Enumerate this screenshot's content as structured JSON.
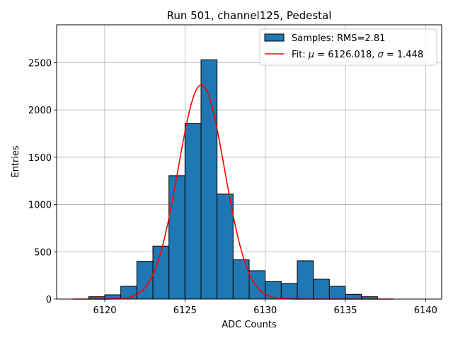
{
  "chart_data": {
    "type": "bar",
    "title": "Run 501, channel125, Pedestal",
    "xlabel": "ADC Counts",
    "ylabel": "Entries",
    "xlim": [
      6117,
      6141
    ],
    "ylim": [
      0,
      2900
    ],
    "grid": true,
    "legend_placement": "top-right",
    "xticks": [
      6120,
      6125,
      6130,
      6135,
      6140
    ],
    "yticks": [
      0,
      500,
      1000,
      1500,
      2000,
      2500
    ],
    "histogram": {
      "name": "Samples: RMS=2.81",
      "color": "#1f77b4",
      "edgecolor": "#000000",
      "bin_width": 1,
      "bin_starts": [
        6119,
        6120,
        6121,
        6122,
        6123,
        6124,
        6125,
        6126,
        6127,
        6128,
        6129,
        6130,
        6131,
        6132,
        6133,
        6134,
        6135,
        6136
      ],
      "counts": [
        25,
        45,
        135,
        400,
        560,
        1305,
        1855,
        2530,
        1110,
        415,
        300,
        185,
        165,
        405,
        210,
        135,
        50,
        25
      ]
    },
    "fit": {
      "label_prefix": "Fit: ",
      "mu_symbol": "μ",
      "mu_text": " = 6126.018, ",
      "sigma_symbol": "σ",
      "sigma_text": " = 1.448",
      "color": "#ff0000",
      "mu": 6126.018,
      "sigma": 1.448,
      "amplitude": 2265,
      "x_range": [
        6118,
        6138
      ]
    }
  }
}
